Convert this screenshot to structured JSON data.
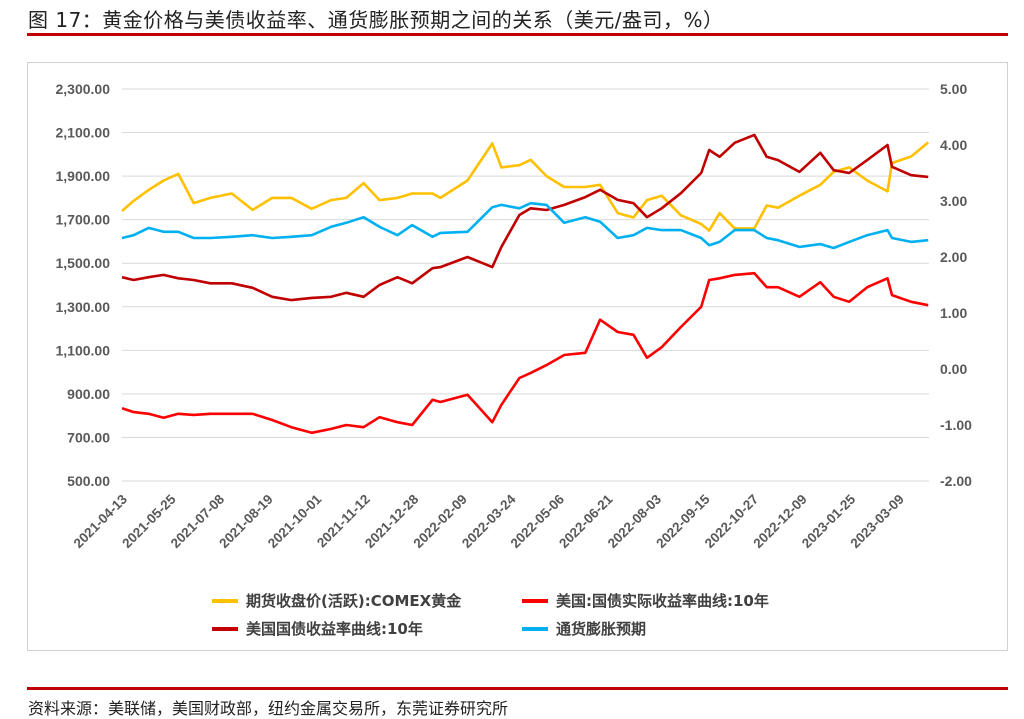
{
  "title": "图 17：黄金价格与美债收益率、通货膨胀预期之间的关系（美元/盎司，%）",
  "source": "资料来源：美联储，美国财政部，纽约金属交易所，东莞证券研究所",
  "chart_data": {
    "type": "line",
    "title": "",
    "grid": "horizontal",
    "legend_position": "bottom",
    "left_axis": {
      "min": 500,
      "max": 2300,
      "step": 200,
      "tick_labels": [
        "500.00",
        "700.00",
        "900.00",
        "1,100.00",
        "1,300.00",
        "1,500.00",
        "1,700.00",
        "1,900.00",
        "2,100.00",
        "2,300.00"
      ]
    },
    "right_axis": {
      "min": -2,
      "max": 5,
      "step": 1,
      "tick_labels": [
        "-2.00",
        "-1.00",
        "0.00",
        "1.00",
        "2.00",
        "3.00",
        "4.00",
        "5.00"
      ]
    },
    "x_tick_labels": [
      "2021-04-13",
      "2021-05-25",
      "2021-07-08",
      "2021-08-19",
      "2021-10-01",
      "2021-11-12",
      "2021-12-28",
      "2022-02-09",
      "2022-03-24",
      "2022-05-06",
      "2022-06-21",
      "2022-08-03",
      "2022-09-15",
      "2022-10-27",
      "2022-12-09",
      "2023-01-25",
      "2023-03-09"
    ],
    "x": [
      "2021-04-13",
      "2021-04-23",
      "2021-05-06",
      "2021-05-19",
      "2021-06-01",
      "2021-06-15",
      "2021-06-30",
      "2021-07-19",
      "2021-08-06",
      "2021-08-23",
      "2021-09-09",
      "2021-09-27",
      "2021-10-14",
      "2021-10-27",
      "2021-11-11",
      "2021-11-26",
      "2021-12-13",
      "2021-12-27",
      "2022-01-14",
      "2022-01-21",
      "2022-02-14",
      "2022-03-08",
      "2022-03-16",
      "2022-04-01",
      "2022-04-11",
      "2022-04-25",
      "2022-05-11",
      "2022-05-31",
      "2022-06-14",
      "2022-06-30",
      "2022-07-14",
      "2022-07-26",
      "2022-08-08",
      "2022-08-25",
      "2022-09-12",
      "2022-09-19",
      "2022-09-28",
      "2022-10-11",
      "2022-10-28",
      "2022-11-08",
      "2022-11-18",
      "2022-12-07",
      "2022-12-27",
      "2023-01-09",
      "2023-01-24",
      "2023-02-09",
      "2023-02-27",
      "2023-03-03",
      "2023-03-20",
      "2023-04-04"
    ],
    "series": [
      {
        "name": "期货收盘价(活跃):COMEX黄金",
        "axis": "left",
        "color": "#FFC000",
        "values": [
          1740,
          1786,
          1836,
          1880,
          1910,
          1776,
          1800,
          1820,
          1745,
          1800,
          1800,
          1750,
          1790,
          1800,
          1868,
          1790,
          1800,
          1820,
          1820,
          1800,
          1880,
          2050,
          1940,
          1950,
          1975,
          1900,
          1850,
          1850,
          1860,
          1730,
          1710,
          1790,
          1810,
          1720,
          1680,
          1650,
          1730,
          1660,
          1660,
          1765,
          1755,
          1810,
          1860,
          1920,
          1940,
          1880,
          1830,
          1960,
          1990,
          2055
        ]
      },
      {
        "name": "美国:国债实际收益率曲线:10年",
        "axis": "right",
        "color": "#FF0000",
        "values": [
          -0.7,
          -0.77,
          -0.8,
          -0.87,
          -0.8,
          -0.82,
          -0.8,
          -0.8,
          -0.8,
          -0.91,
          -1.04,
          -1.14,
          -1.07,
          -1.0,
          -1.04,
          -0.86,
          -0.95,
          -1.0,
          -0.55,
          -0.59,
          -0.46,
          -0.95,
          -0.64,
          -0.16,
          -0.07,
          0.07,
          0.25,
          0.29,
          0.88,
          0.66,
          0.61,
          0.2,
          0.39,
          0.75,
          1.11,
          1.59,
          1.62,
          1.68,
          1.71,
          1.46,
          1.46,
          1.29,
          1.55,
          1.29,
          1.2,
          1.46,
          1.62,
          1.32,
          1.2,
          1.14
        ]
      },
      {
        "name": "美国国债收益率曲线:10年",
        "axis": "right",
        "color": "#C00000",
        "values": [
          1.64,
          1.59,
          1.64,
          1.68,
          1.62,
          1.59,
          1.53,
          1.53,
          1.45,
          1.29,
          1.23,
          1.27,
          1.29,
          1.36,
          1.29,
          1.5,
          1.64,
          1.53,
          1.8,
          1.82,
          2.0,
          1.82,
          2.18,
          2.75,
          2.87,
          2.84,
          2.93,
          3.07,
          3.2,
          3.02,
          2.96,
          2.71,
          2.87,
          3.14,
          3.5,
          3.91,
          3.79,
          4.04,
          4.18,
          3.79,
          3.73,
          3.52,
          3.86,
          3.55,
          3.5,
          3.73,
          4.0,
          3.61,
          3.46,
          3.43
        ]
      },
      {
        "name": "通货膨胀预期",
        "axis": "right",
        "color": "#00B0F0",
        "values": [
          2.34,
          2.39,
          2.52,
          2.45,
          2.45,
          2.34,
          2.34,
          2.36,
          2.39,
          2.34,
          2.36,
          2.39,
          2.54,
          2.61,
          2.71,
          2.54,
          2.39,
          2.57,
          2.36,
          2.43,
          2.45,
          2.89,
          2.93,
          2.87,
          2.96,
          2.93,
          2.61,
          2.71,
          2.63,
          2.34,
          2.39,
          2.52,
          2.48,
          2.48,
          2.34,
          2.21,
          2.27,
          2.48,
          2.48,
          2.34,
          2.3,
          2.18,
          2.23,
          2.16,
          2.27,
          2.39,
          2.48,
          2.34,
          2.27,
          2.3
        ]
      }
    ]
  }
}
